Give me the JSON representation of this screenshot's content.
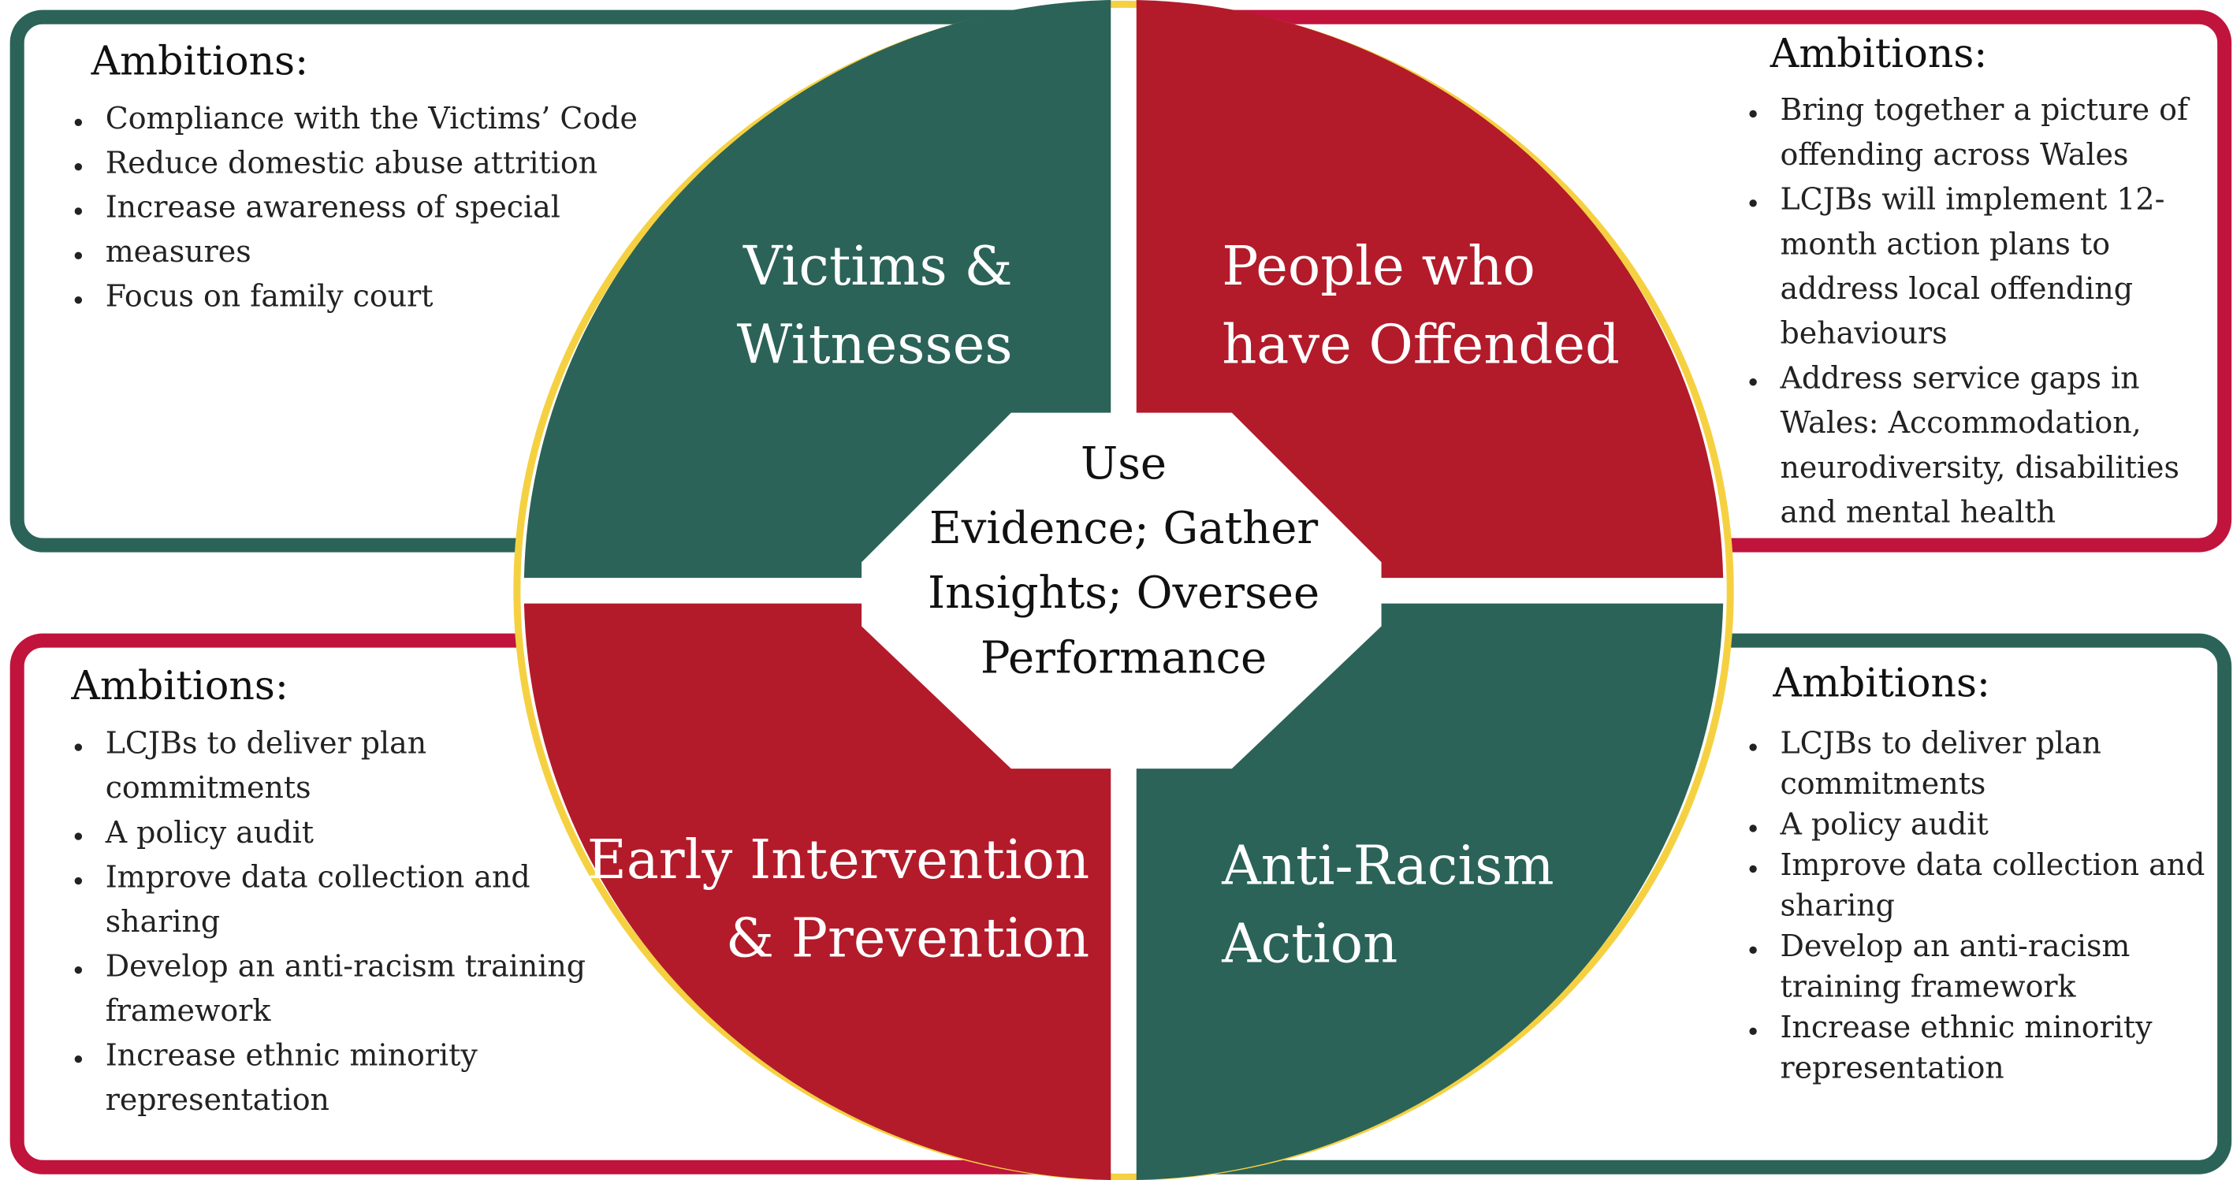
{
  "quadrants": [
    {
      "label": [
        "Victims &",
        "Witnesses"
      ]
    },
    {
      "label": [
        "People who",
        "have Offended"
      ]
    },
    {
      "label": [
        "Early Intervention",
        "& Prevention"
      ]
    },
    {
      "label": [
        "Anti-Racism",
        "Action"
      ]
    }
  ],
  "center": [
    "Use",
    "Evidence; Gather",
    "Insights; Oversee",
    "Performance"
  ],
  "boxes": [
    {
      "heading": "Ambitions:",
      "items": [
        [
          "Compliance with the Victims’ Code"
        ],
        [
          "Reduce domestic abuse attrition"
        ],
        [
          "Increase awareness of special"
        ],
        [
          "measures"
        ],
        [
          "Focus on family court"
        ]
      ]
    },
    {
      "heading": "Ambitions:",
      "items": [
        [
          "Bring together a picture of",
          "offending across Wales"
        ],
        [
          "LCJBs will implement 12-",
          "month action plans to",
          "address local offending",
          "behaviours"
        ],
        [
          "Address service gaps in",
          "Wales: Accommodation,",
          "neurodiversity, disabilities",
          "and mental health"
        ]
      ]
    },
    {
      "heading": "Ambitions:",
      "items": [
        [
          "LCJBs to deliver plan",
          "commitments"
        ],
        [
          "A policy audit"
        ],
        [
          "Improve data collection and",
          "sharing"
        ],
        [
          "Develop an anti-racism training",
          "framework"
        ],
        [
          "Increase ethnic minority",
          "representation"
        ]
      ]
    },
    {
      "heading": "Ambitions:",
      "items": [
        [
          "LCJBs to deliver plan",
          "commitments"
        ],
        [
          "A policy audit"
        ],
        [
          "Improve data collection and",
          "sharing"
        ],
        [
          "Develop an anti-racism",
          "training framework"
        ],
        [
          "Increase ethnic minority",
          "representation"
        ]
      ]
    }
  ]
}
